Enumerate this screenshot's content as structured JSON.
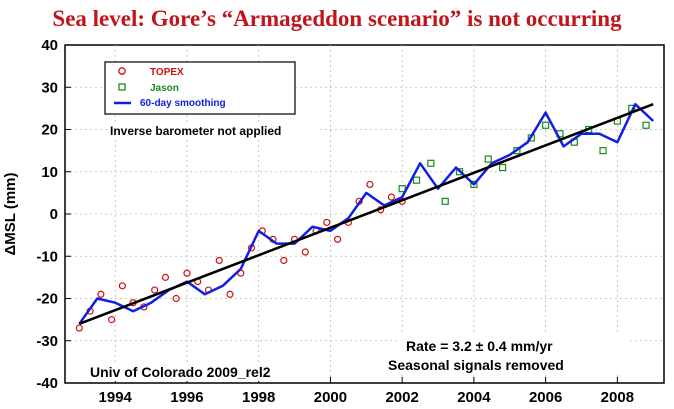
{
  "headline": "Sea level: Gore’s “Armageddon scenario” is not occurring",
  "chart_data": {
    "type": "scatter",
    "title": "",
    "xlabel": "",
    "ylabel": "ΔMSL (mm)",
    "xlim": [
      1992.6,
      2009.3
    ],
    "ylim": [
      -40,
      40
    ],
    "x_ticks": [
      1994,
      1996,
      1998,
      2000,
      2002,
      2004,
      2006,
      2008
    ],
    "y_ticks": [
      -40,
      -30,
      -20,
      -10,
      0,
      10,
      20,
      30,
      40
    ],
    "grid": true,
    "legend_position": "top-left",
    "annotations": {
      "inverse_barometer": "Inverse barometer not applied",
      "rate": "Rate = 3.2 ± 0.4 mm/yr",
      "seasonal": "Seasonal signals removed",
      "source": "Univ of Colorado 2009_rel2"
    },
    "series": [
      {
        "name": "TOPEX",
        "kind": "scatter",
        "marker": "circle",
        "color": "#d01010",
        "x": [
          1993.0,
          1993.3,
          1993.6,
          1993.9,
          1994.2,
          1994.5,
          1994.8,
          1995.1,
          1995.4,
          1995.7,
          1996.0,
          1996.3,
          1996.6,
          1996.9,
          1997.2,
          1997.5,
          1997.8,
          1998.1,
          1998.4,
          1998.7,
          1999.0,
          1999.3,
          1999.6,
          1999.9,
          2000.2,
          2000.5,
          2000.8,
          2001.1,
          2001.4,
          2001.7,
          2002.0
        ],
        "y": [
          -27,
          -23,
          -19,
          -25,
          -17,
          -21,
          -22,
          -18,
          -15,
          -20,
          -14,
          -16,
          -18,
          -11,
          -19,
          -14,
          -8,
          -4,
          -6,
          -11,
          -6,
          -9,
          -4,
          -2,
          -6,
          -2,
          3,
          7,
          1,
          4,
          3
        ]
      },
      {
        "name": "Jason",
        "kind": "scatter",
        "marker": "square",
        "color": "#1a8a1a",
        "x": [
          2002.0,
          2002.4,
          2002.8,
          2003.2,
          2003.6,
          2004.0,
          2004.4,
          2004.8,
          2005.2,
          2005.6,
          2006.0,
          2006.4,
          2006.8,
          2007.2,
          2007.6,
          2008.0,
          2008.4,
          2008.8
        ],
        "y": [
          6,
          8,
          12,
          3,
          10,
          7,
          13,
          11,
          15,
          18,
          21,
          19,
          17,
          20,
          15,
          22,
          25,
          21
        ]
      },
      {
        "name": "60-day smoothing",
        "kind": "line",
        "color": "#1020e0",
        "x": [
          1993.0,
          1993.5,
          1994.0,
          1994.5,
          1995.0,
          1995.5,
          1996.0,
          1996.5,
          1997.0,
          1997.5,
          1998.0,
          1998.5,
          1999.0,
          1999.5,
          2000.0,
          2000.5,
          2001.0,
          2001.5,
          2002.0,
          2002.5,
          2003.0,
          2003.5,
          2004.0,
          2004.5,
          2005.0,
          2005.5,
          2006.0,
          2006.5,
          2007.0,
          2007.5,
          2008.0,
          2008.5,
          2009.0
        ],
        "y": [
          -26,
          -20,
          -21,
          -23,
          -21,
          -18,
          -16,
          -19,
          -17,
          -13,
          -4,
          -7,
          -7,
          -3,
          -4,
          -1,
          5,
          2,
          4,
          12,
          6,
          11,
          7,
          12,
          14,
          17,
          24,
          16,
          19,
          19,
          17,
          26,
          22
        ]
      }
    ],
    "trend": {
      "x": [
        1993.0,
        2009.0
      ],
      "y": [
        -26,
        26
      ],
      "color": "#000000"
    }
  }
}
